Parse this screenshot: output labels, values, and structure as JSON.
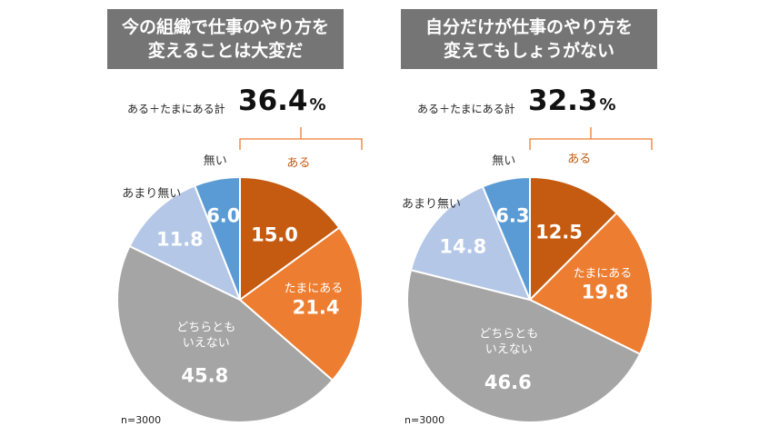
{
  "chart_data": [
    {
      "type": "pie",
      "title": "今の組織で仕事のやり方を変えることは大変だ",
      "title_lines": [
        "今の組織で仕事のやり方を",
        "変えることは大変だ"
      ],
      "total_label": "ある＋たまにある計",
      "total_value": "36.4",
      "total_unit": "%",
      "n_label": "n=3000",
      "slices": [
        {
          "label": "ある",
          "label_lines": [
            "ある"
          ],
          "value": 15.0,
          "color": "#C55A11",
          "label_color": "#C55A11"
        },
        {
          "label": "たまにある",
          "label_lines": [
            "たまにある"
          ],
          "value": 21.4,
          "color": "#ED7D31",
          "label_color": "#ffffff"
        },
        {
          "label": "どちらともいえない",
          "label_lines": [
            "どちらとも",
            "いえない"
          ],
          "value": 45.8,
          "color": "#A5A5A5",
          "label_color": "#ffffff"
        },
        {
          "label": "あまり無い",
          "label_lines": [
            "あまり無い"
          ],
          "value": 11.8,
          "color": "#B4C7E7",
          "label_color": "#333333"
        },
        {
          "label": "無い",
          "label_lines": [
            "無い"
          ],
          "value": 6.0,
          "color": "#5B9BD5",
          "label_color": "#333333"
        }
      ]
    },
    {
      "type": "pie",
      "title": "自分だけが仕事のやり方を変えてもしょうがない",
      "title_lines": [
        "自分だけが仕事のやり方を",
        "変えてもしょうがない"
      ],
      "total_label": "ある＋たまにある計",
      "total_value": "32.3",
      "total_unit": "%",
      "n_label": "n=3000",
      "slices": [
        {
          "label": "ある",
          "label_lines": [
            "ある"
          ],
          "value": 12.5,
          "color": "#C55A11",
          "label_color": "#C55A11"
        },
        {
          "label": "たまにある",
          "label_lines": [
            "たまにある"
          ],
          "value": 19.8,
          "color": "#ED7D31",
          "label_color": "#ffffff"
        },
        {
          "label": "どちらともいえない",
          "label_lines": [
            "どちらとも",
            "いえない"
          ],
          "value": 46.6,
          "color": "#A5A5A5",
          "label_color": "#ffffff"
        },
        {
          "label": "あまり無い",
          "label_lines": [
            "あまり無い"
          ],
          "value": 14.8,
          "color": "#B4C7E7",
          "label_color": "#333333"
        },
        {
          "label": "無い",
          "label_lines": [
            "無い"
          ],
          "value": 6.3,
          "color": "#5B9BD5",
          "label_color": "#333333"
        }
      ]
    }
  ]
}
